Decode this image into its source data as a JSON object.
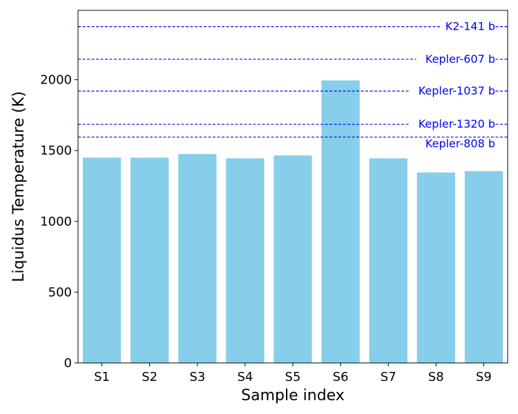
{
  "chart_data": {
    "type": "bar",
    "title": "",
    "xlabel": "Sample index",
    "ylabel": "Liquidus Temperature (K)",
    "categories": [
      "S1",
      "S2",
      "S3",
      "S4",
      "S5",
      "S6",
      "S7",
      "S8",
      "S9"
    ],
    "values": [
      1450,
      1450,
      1475,
      1445,
      1465,
      1995,
      1445,
      1345,
      1355
    ],
    "ylim": [
      0,
      2490
    ],
    "yticks": [
      0,
      500,
      1000,
      1500,
      2000
    ],
    "grid": false,
    "bar_color": "#87ceeb",
    "reference_lines": [
      {
        "label": "K2-141 b",
        "value": 2375
      },
      {
        "label": "Kepler-607 b",
        "value": 2145
      },
      {
        "label": "Kepler-1037 b",
        "value": 1920
      },
      {
        "label": "Kepler-1320 b",
        "value": 1685
      },
      {
        "label": "Kepler-808 b",
        "value": 1595
      }
    ],
    "reference_line_color": "#0000ff",
    "reference_line_style": "dashed"
  }
}
